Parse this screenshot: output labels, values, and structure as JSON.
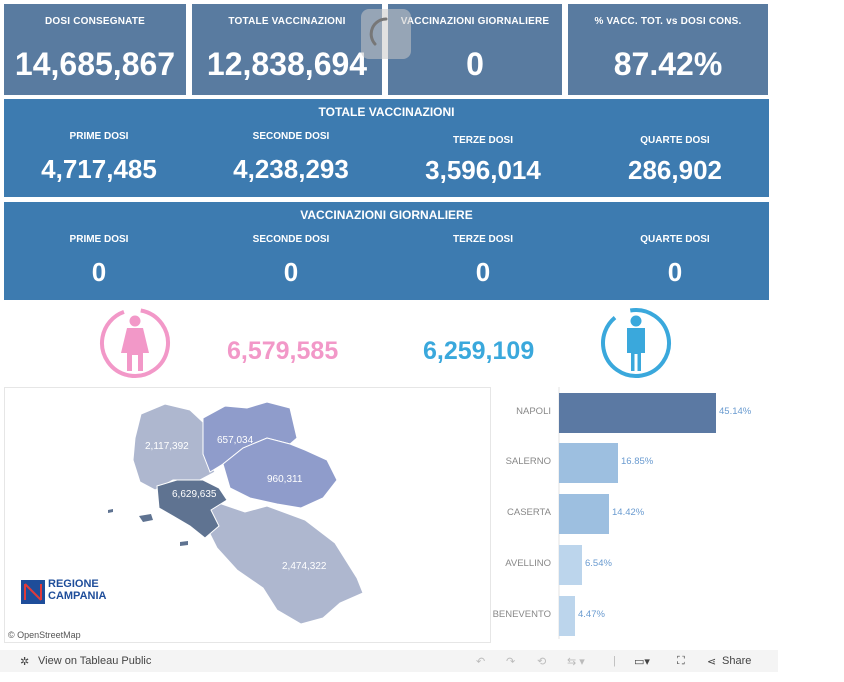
{
  "kpis": [
    {
      "label": "DOSI  CONSEGNATE",
      "value": "14,685,867"
    },
    {
      "label": "TOTALE VACCINAZIONI",
      "value": "12,838,694"
    },
    {
      "label": "VACCINAZIONI GIORNALIERE",
      "value": "0"
    },
    {
      "label": "% VACC. TOT. vs DOSI CONS.",
      "value": "87.42%"
    }
  ],
  "totale": {
    "title": "TOTALE VACCINAZIONI",
    "items": [
      {
        "label": "PRIME DOSI",
        "value": "4,717,485"
      },
      {
        "label": "SECONDE DOSI",
        "value": "4,238,293"
      },
      {
        "label": "TERZE DOSI",
        "value": "3,596,014"
      },
      {
        "label": "QUARTE DOSI",
        "value": "286,902"
      }
    ]
  },
  "giornaliere": {
    "title": "VACCINAZIONI GIORNALIERE",
    "items": [
      {
        "label": "PRIME DOSI",
        "value": "0"
      },
      {
        "label": "SECONDE DOSI",
        "value": "0"
      },
      {
        "label": "TERZE DOSI",
        "value": "0"
      },
      {
        "label": "QUARTE DOSI",
        "value": "0"
      }
    ]
  },
  "gender": {
    "female_value": "6,579,585",
    "male_value": "6,259,109",
    "female_color": "#f298c8",
    "male_color": "#3aa8dc"
  },
  "map": {
    "provinces": [
      {
        "name": "Caserta",
        "value": "2,117,392"
      },
      {
        "name": "Benevento",
        "value": "657,034"
      },
      {
        "name": "Avellino",
        "value": "960,311"
      },
      {
        "name": "Napoli",
        "value": "6,629,635"
      },
      {
        "name": "Salerno",
        "value": "2,474,322"
      }
    ],
    "logo_line1": "REGIONE",
    "logo_line2": "CAMPANIA",
    "attribution": "© OpenStreetMap"
  },
  "chart_data": {
    "type": "bar",
    "orientation": "horizontal",
    "categories": [
      "NAPOLI",
      "SALERNO",
      "CASERTA",
      "AVELLINO",
      "BENEVENTO"
    ],
    "values": [
      45.14,
      16.85,
      14.42,
      6.54,
      4.47
    ],
    "data_labels": [
      "45.14%",
      "16.85%",
      "14.42%",
      "6.54%",
      "4.47%"
    ],
    "colors": [
      "#5b79a3",
      "#9dbfe0",
      "#9dbfe0",
      "#bcd5ec",
      "#bcd5ec"
    ],
    "grid": false
  },
  "toolbar": {
    "view_label": "View on Tableau Public",
    "share_label": "Share"
  }
}
